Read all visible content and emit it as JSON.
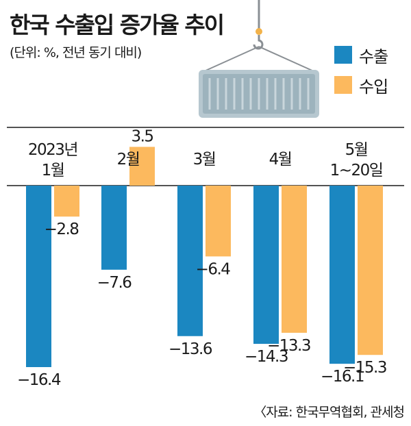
{
  "header": {
    "title": "한국 수출입 증가율 추이",
    "unit_note": "(단위: %, 전년 동기 대비)"
  },
  "legend": [
    {
      "label": "수출",
      "color": "#1b87c1"
    },
    {
      "label": "수입",
      "color": "#fcb95e"
    }
  ],
  "source": "〈자료: 한국무역협회, 관세청",
  "chart_data": {
    "type": "bar",
    "title": "한국 수출입 증가율 추이",
    "ylabel": "",
    "xlabel": "",
    "categories": [
      [
        "2023년",
        "1월"
      ],
      [
        "2월"
      ],
      [
        "3월"
      ],
      [
        "4월"
      ],
      [
        "5월",
        "1~20일"
      ]
    ],
    "series": [
      {
        "name": "수출",
        "color": "#1b87c1",
        "values": [
          -16.4,
          -7.6,
          -13.6,
          -14.3,
          -16.1
        ],
        "labels": [
          "−16.4",
          "−7.6",
          "−13.6",
          "−14.3",
          "−16.1"
        ]
      },
      {
        "name": "수입",
        "color": "#fcb95e",
        "values": [
          -2.8,
          3.5,
          -6.4,
          -13.3,
          -15.3
        ],
        "labels": [
          "−2.8",
          "3.5",
          "−6.4",
          "−13.3",
          "−15.3"
        ]
      }
    ],
    "ylim": [
      -16.4,
      3.5
    ],
    "grid": false,
    "legend_position": "top-right"
  }
}
